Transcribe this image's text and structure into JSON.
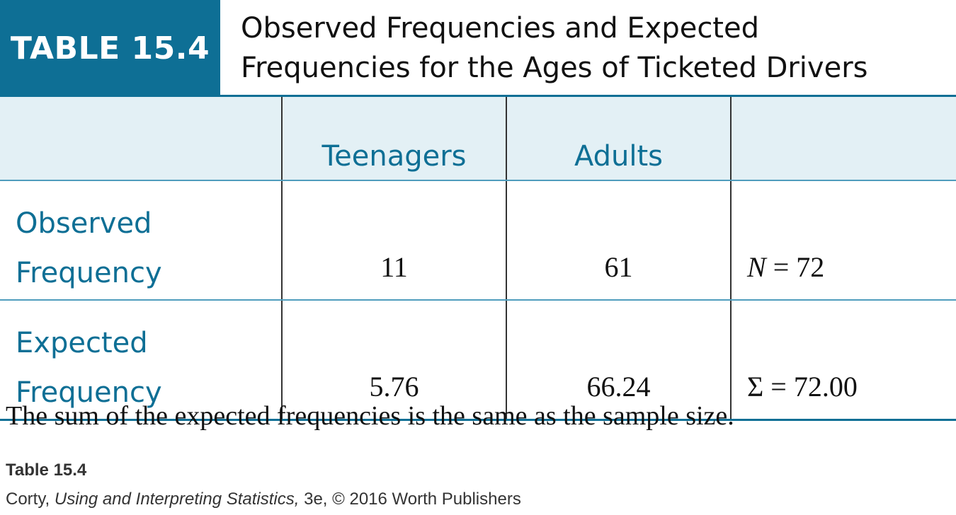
{
  "header": {
    "badge": "TABLE 15.4",
    "title_line1": "Observed Frequencies and Expected",
    "title_line2": "Frequencies for the Ages of Ticketed Drivers"
  },
  "table": {
    "columns": [
      "",
      "Teenagers",
      "Adults",
      ""
    ],
    "rows": [
      {
        "label_line1": "Observed",
        "label_line2": "Frequency",
        "teenagers": "11",
        "adults": "61",
        "total_symbol": "N",
        "total_value": " = 72"
      },
      {
        "label_line1": "Expected",
        "label_line2": "Frequency",
        "teenagers": "5.76",
        "adults": "66.24",
        "total_symbol": "Σ",
        "total_value": " = 72.00"
      }
    ]
  },
  "caption": "The sum of the expected frequencies is the same as the sample size.",
  "footer": {
    "table_tag": "Table 15.4",
    "credit_author": "Corty, ",
    "credit_book": "Using and Interpreting Statistics,",
    "credit_rest": " 3e, © 2016 Worth Publishers"
  },
  "colors": {
    "accent": "#0e6f95",
    "header_fill": "#e3f0f5"
  }
}
